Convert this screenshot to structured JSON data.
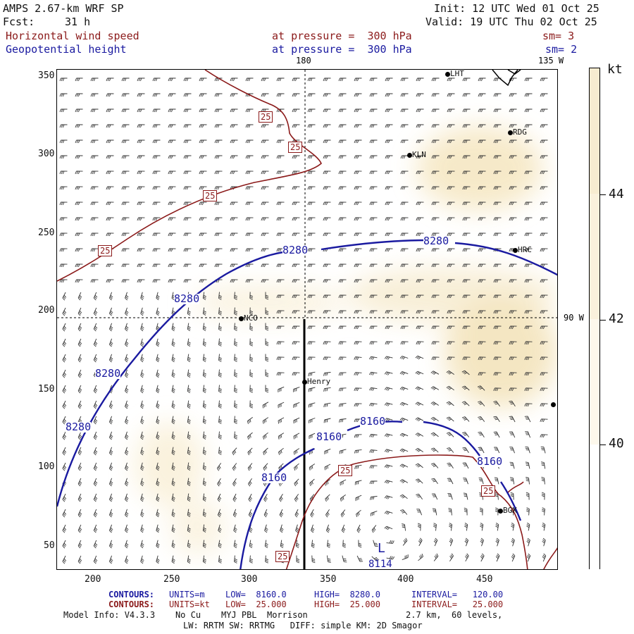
{
  "header": {
    "model": "AMPS 2.67-km WRF SP",
    "init": "Init: 12 UTC Wed 01 Oct 25",
    "fcst_label": "Fcst:",
    "fcst_value": "31 h",
    "valid": "Valid: 19 UTC Thu 02 Oct 25",
    "field1": "Horizontal wind speed",
    "field1_level": "at pressure =  300 hPa",
    "field1_sm": "sm= 3",
    "field2": "Geopotential height",
    "field2_level": "at pressure =  300 hPa",
    "field2_sm": "sm= 2"
  },
  "map": {
    "lon_labels": [
      "180",
      "135 W",
      "90 W"
    ],
    "stations": [
      "LHT",
      "RDG",
      "KLN",
      "HRC",
      "NCO",
      "Henry",
      "BGX"
    ],
    "low_marker": "L",
    "low_value": "8114",
    "height_contours": [
      "8280",
      "8280",
      "8280",
      "8280",
      "8280",
      "8160",
      "8160",
      "8160",
      "8160"
    ],
    "wind_contours": [
      "25",
      "25",
      "25",
      "25",
      "25",
      "25",
      "25"
    ],
    "colors": {
      "height": "#1a1aa0",
      "wind": "#8b1a1a",
      "shade": "#f7eccc"
    }
  },
  "chart_data": {
    "type": "heatmap",
    "x_ticks": [
      "200",
      "250",
      "300",
      "350",
      "400",
      "450"
    ],
    "y_ticks": [
      "350",
      "300",
      "250",
      "200",
      "150",
      "100",
      "50"
    ],
    "xlim": [
      175,
      495
    ],
    "ylim": [
      33,
      355
    ],
    "colorbar": {
      "unit": "kt",
      "ticks": [
        "44",
        "42",
        "40"
      ]
    }
  },
  "footer": {
    "c1_title": "CONTOURS:",
    "c1_units": "UNITS=m",
    "c1_low": "LOW=  8160.0",
    "c1_high": "HIGH=  8280.0",
    "c1_interval": "INTERVAL=   120.00",
    "c2_title": "CONTOURS:",
    "c2_units": "UNITS=kt",
    "c2_low": "LOW=  25.000",
    "c2_high": "HIGH=  25.000",
    "c2_interval": "INTERVAL=   25.000",
    "model_info": "Model Info: V4.3.3    No Cu    MYJ PBL  Morrison",
    "model_res": "2.7 km,  60 levels,",
    "model_phys": "LW: RRTM SW: RRTMG   DIFF: simple KM: 2D Smagor"
  }
}
